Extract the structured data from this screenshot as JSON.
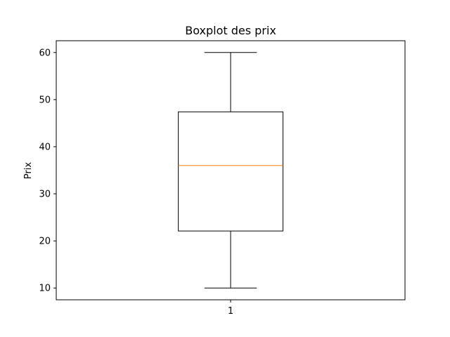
{
  "chart_data": {
    "type": "boxplot",
    "title": "Boxplot des prix",
    "xlabel": "",
    "ylabel": "Prix",
    "categories": [
      "1"
    ],
    "boxes": [
      {
        "category": "1",
        "whisker_low": 10,
        "q1": 22.1,
        "median": 36,
        "q3": 47.4,
        "whisker_high": 60
      }
    ],
    "ylim": [
      7.5,
      62.5
    ],
    "y_ticks": [
      10,
      20,
      30,
      40,
      50,
      60
    ],
    "grid": false,
    "colors": {
      "box": "#000000",
      "median": "#ff7f0e",
      "whisker": "#000000"
    }
  }
}
